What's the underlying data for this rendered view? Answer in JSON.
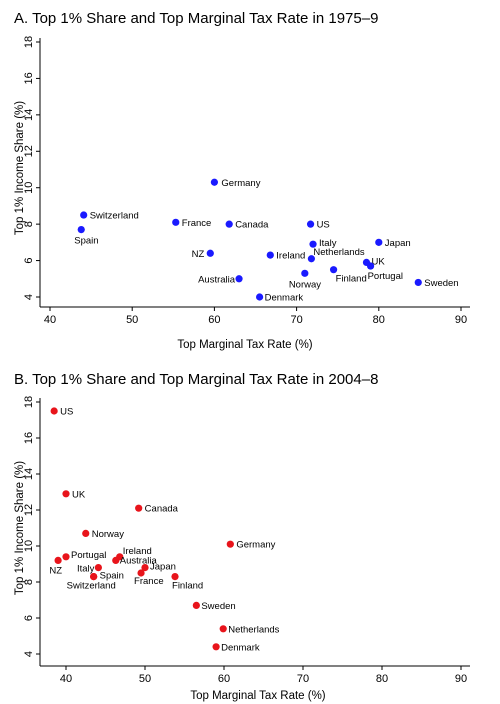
{
  "chart_data": [
    {
      "type": "scatter",
      "title": "A. Top 1% Share and Top Marginal Tax Rate in 1975–9",
      "xlabel": "Top Marginal Tax Rate (%)",
      "ylabel": "Top 1% Income Share (%)",
      "xlim": [
        40,
        90
      ],
      "ylim": [
        4,
        18
      ],
      "xticks": [
        40,
        50,
        60,
        70,
        80,
        90
      ],
      "yticks": [
        4,
        6,
        8,
        10,
        12,
        14,
        16,
        18
      ],
      "point_color": "#1a1aff",
      "points": [
        {
          "label": "Germany",
          "x": 60.0,
          "y": 10.3
        },
        {
          "label": "Switzerland",
          "x": 44.1,
          "y": 8.5
        },
        {
          "label": "Spain",
          "x": 43.8,
          "y": 7.7
        },
        {
          "label": "France",
          "x": 55.3,
          "y": 8.1
        },
        {
          "label": "Canada",
          "x": 61.8,
          "y": 8.0
        },
        {
          "label": "US",
          "x": 71.7,
          "y": 8.0
        },
        {
          "label": "Italy",
          "x": 72.0,
          "y": 6.9
        },
        {
          "label": "Japan",
          "x": 80.0,
          "y": 7.0
        },
        {
          "label": "NZ",
          "x": 59.5,
          "y": 6.4
        },
        {
          "label": "Ireland",
          "x": 66.8,
          "y": 6.3
        },
        {
          "label": "Netherlands",
          "x": 71.8,
          "y": 6.1
        },
        {
          "label": "UK",
          "x": 78.5,
          "y": 5.9
        },
        {
          "label": "Portugal",
          "x": 79.0,
          "y": 5.7
        },
        {
          "label": "Norway",
          "x": 71.0,
          "y": 5.3
        },
        {
          "label": "Finland",
          "x": 74.5,
          "y": 5.5
        },
        {
          "label": "Australia",
          "x": 63.0,
          "y": 5.0
        },
        {
          "label": "Sweden",
          "x": 84.8,
          "y": 4.8
        },
        {
          "label": "Denmark",
          "x": 65.5,
          "y": 4.0
        }
      ]
    },
    {
      "type": "scatter",
      "title": "B. Top 1% Share and Top Marginal Tax Rate in 2004–8",
      "xlabel": "Top Marginal Tax Rate (%)",
      "ylabel": "Top 1% Income Share (%)",
      "xlim": [
        38,
        90
      ],
      "ylim": [
        4,
        18
      ],
      "xticks": [
        40,
        50,
        60,
        70,
        80,
        90
      ],
      "yticks": [
        4,
        6,
        8,
        10,
        12,
        14,
        16,
        18
      ],
      "point_color": "#e8141b",
      "points": [
        {
          "label": "US",
          "x": 38.5,
          "y": 17.5
        },
        {
          "label": "UK",
          "x": 40.0,
          "y": 12.9
        },
        {
          "label": "Canada",
          "x": 49.2,
          "y": 12.1
        },
        {
          "label": "Norway",
          "x": 42.5,
          "y": 10.7
        },
        {
          "label": "Germany",
          "x": 60.8,
          "y": 10.1
        },
        {
          "label": "Portugal",
          "x": 40.0,
          "y": 9.4
        },
        {
          "label": "NZ",
          "x": 39.0,
          "y": 9.2
        },
        {
          "label": "Ireland",
          "x": 46.8,
          "y": 9.4
        },
        {
          "label": "Australia",
          "x": 46.3,
          "y": 9.2
        },
        {
          "label": "Italy",
          "x": 44.1,
          "y": 8.8
        },
        {
          "label": "Japan",
          "x": 50.0,
          "y": 8.8
        },
        {
          "label": "Spain",
          "x": 43.5,
          "y": 8.3
        },
        {
          "label": "Switzerland",
          "x": 43.5,
          "y": 8.3
        },
        {
          "label": "France",
          "x": 49.5,
          "y": 8.5
        },
        {
          "label": "Finland",
          "x": 53.8,
          "y": 8.3
        },
        {
          "label": "Sweden",
          "x": 56.5,
          "y": 6.7
        },
        {
          "label": "Netherlands",
          "x": 59.9,
          "y": 5.4
        },
        {
          "label": "Denmark",
          "x": 59.0,
          "y": 4.4
        }
      ]
    }
  ]
}
